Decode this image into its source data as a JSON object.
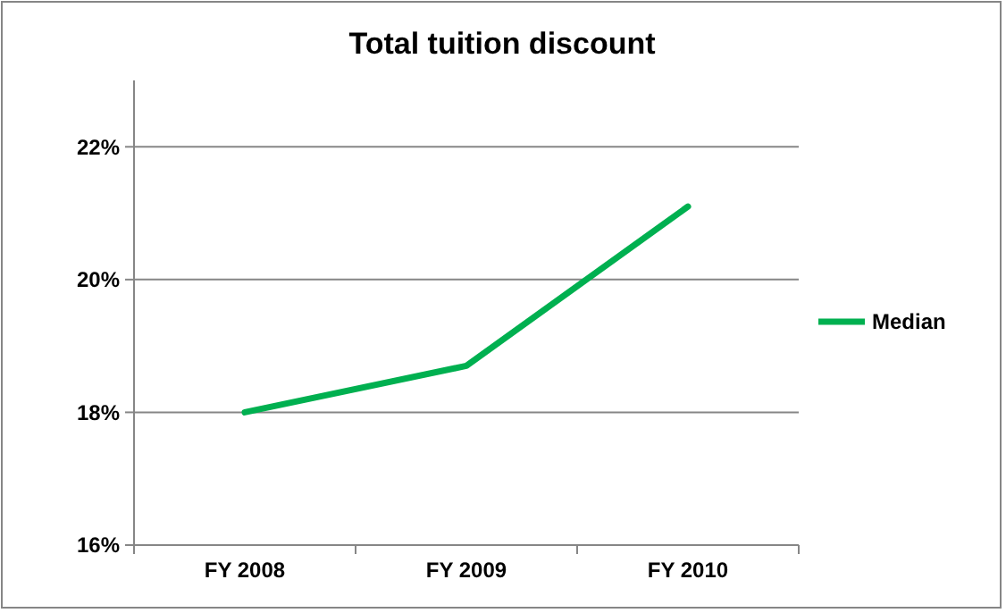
{
  "chart_data": {
    "type": "line",
    "title": "Total tuition discount",
    "categories": [
      "FY 2008",
      "FY 2009",
      "FY 2010"
    ],
    "series": [
      {
        "name": "Median",
        "color": "#00b050",
        "values": [
          18.0,
          18.7,
          21.1
        ]
      }
    ],
    "ylim": [
      16,
      23
    ],
    "yticks": [
      {
        "value": 16,
        "label": "16%"
      },
      {
        "value": 18,
        "label": "18%"
      },
      {
        "value": 20,
        "label": "20%"
      },
      {
        "value": 22,
        "label": "22%"
      }
    ],
    "grid": "y",
    "legend": "right",
    "marker": "none",
    "line_style": "solid"
  }
}
